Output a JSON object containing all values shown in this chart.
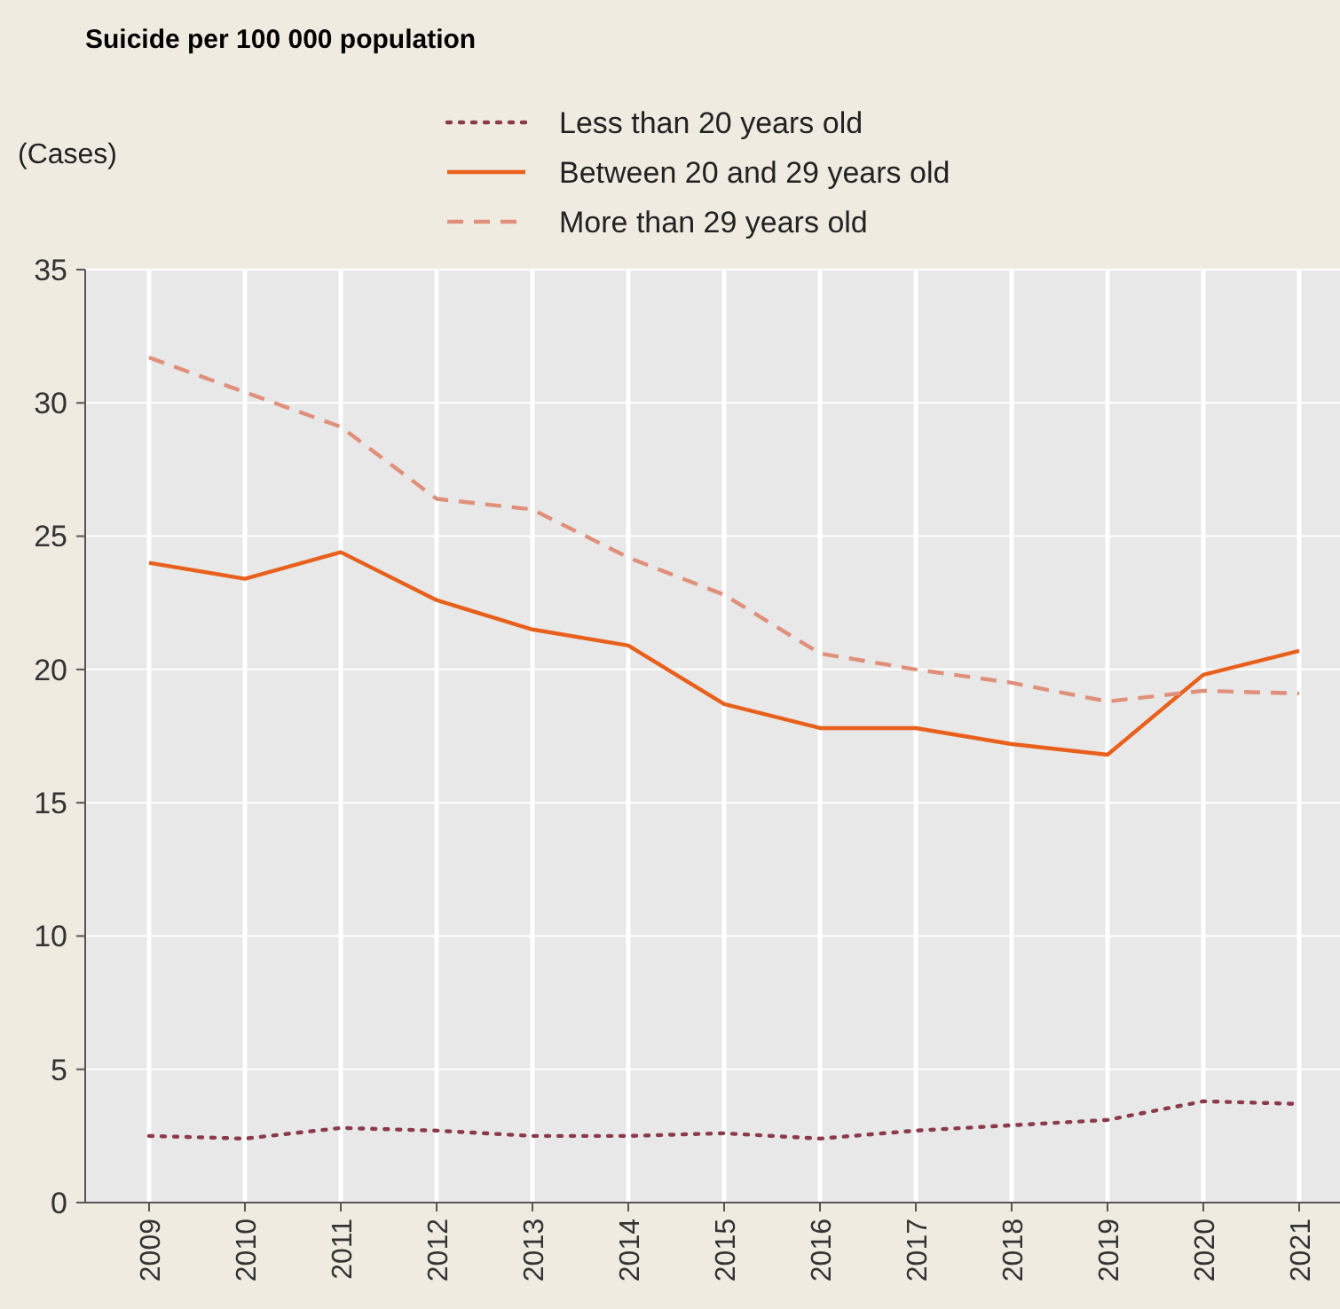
{
  "chart_data": {
    "type": "line",
    "title": "Suicide per 100 000 population",
    "ylabel": "(Cases)",
    "categories": [
      "2009",
      "2010",
      "2011",
      "2012",
      "2013",
      "2014",
      "2015",
      "2016",
      "2017",
      "2018",
      "2019",
      "2020",
      "2021"
    ],
    "series": [
      {
        "name": "Less than 20 years old",
        "color": "#8b3a4a",
        "line_style": "dotted",
        "values": [
          2.5,
          2.4,
          2.8,
          2.7,
          2.5,
          2.5,
          2.6,
          2.4,
          2.7,
          2.9,
          3.1,
          3.8,
          3.7
        ]
      },
      {
        "name": "Between 20 and 29 years old",
        "color": "#e8601c",
        "line_style": "solid",
        "values": [
          24.0,
          23.4,
          24.4,
          22.6,
          21.5,
          20.9,
          18.7,
          17.8,
          17.8,
          17.2,
          16.8,
          19.8,
          20.7
        ]
      },
      {
        "name": "More than 29 years old",
        "color": "#e0907a",
        "line_style": "dashed",
        "values": [
          31.7,
          30.4,
          29.1,
          26.4,
          26.0,
          24.2,
          22.8,
          20.6,
          20.0,
          19.5,
          18.8,
          19.2,
          19.1
        ]
      }
    ],
    "ylim": [
      0,
      35
    ],
    "yticks": [
      0,
      5,
      10,
      15,
      20,
      25,
      30,
      35
    ],
    "grid": true,
    "legend": "top"
  }
}
